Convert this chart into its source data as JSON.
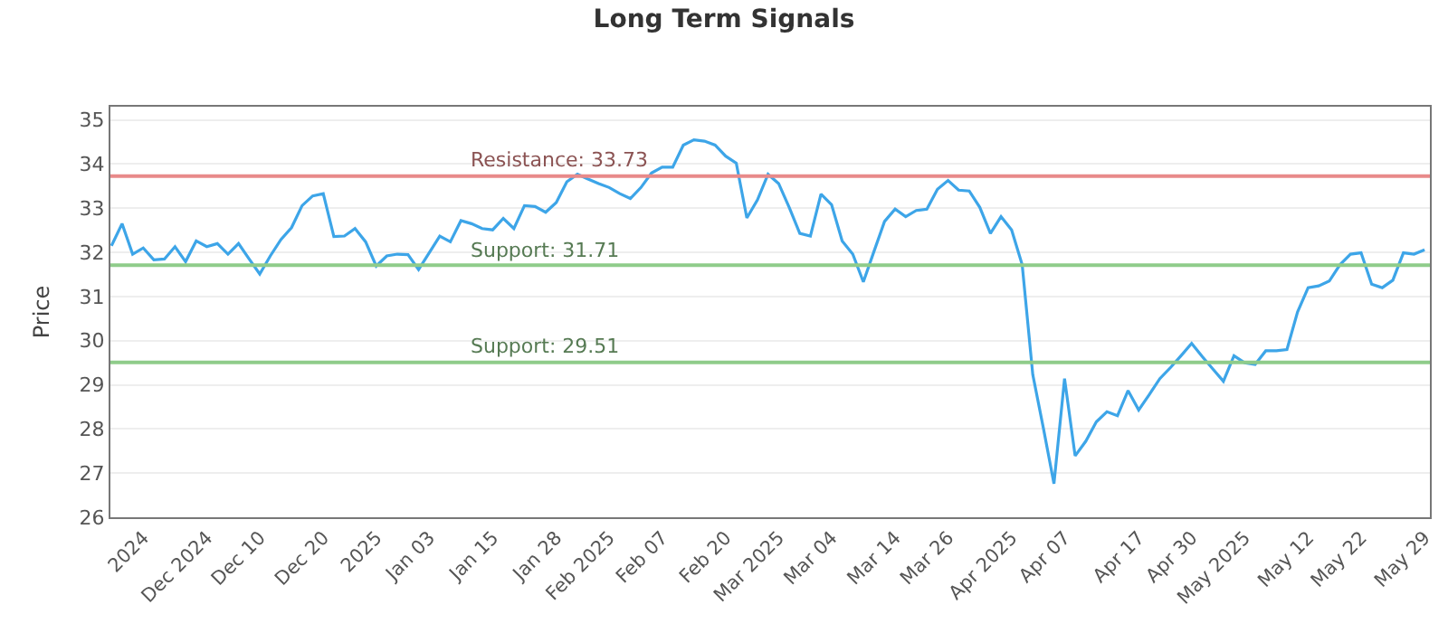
{
  "chart_data": {
    "type": "line",
    "title": "Long Term Signals",
    "ylabel": "Price",
    "categories": [
      null,
      null,
      null,
      "2024",
      null,
      null,
      null,
      null,
      null,
      "Dec 2024",
      null,
      null,
      null,
      null,
      "Dec 10",
      null,
      null,
      null,
      null,
      null,
      "Dec 20",
      null,
      null,
      null,
      null,
      "2025",
      null,
      null,
      null,
      null,
      "Jan 03",
      null,
      null,
      null,
      null,
      null,
      "Jan 15",
      null,
      null,
      null,
      null,
      null,
      "Jan 28",
      null,
      null,
      null,
      null,
      "Feb 2025",
      null,
      null,
      null,
      null,
      "Feb 07",
      null,
      null,
      null,
      null,
      null,
      "Feb 20",
      null,
      null,
      null,
      null,
      "Mar 2025",
      null,
      null,
      null,
      null,
      "Mar 04",
      null,
      null,
      null,
      null,
      null,
      "Mar 14",
      null,
      null,
      null,
      null,
      "Mar 26",
      null,
      null,
      null,
      null,
      null,
      "Apr 2025",
      null,
      null,
      null,
      null,
      "Apr 07",
      null,
      null,
      null,
      null,
      null,
      null,
      "Apr 17",
      null,
      null,
      null,
      null,
      "Apr 30",
      null,
      null,
      null,
      null,
      "May 2025",
      null,
      null,
      null,
      null,
      null,
      "May 12",
      null,
      null,
      null,
      null,
      "May 22",
      null,
      null,
      null,
      null,
      null,
      "May 29"
    ],
    "values": [
      32.15,
      32.65,
      31.96,
      32.1,
      31.83,
      31.85,
      32.13,
      31.79,
      32.26,
      32.13,
      32.2,
      31.96,
      32.2,
      31.85,
      31.51,
      31.92,
      32.29,
      32.56,
      33.06,
      33.28,
      33.33,
      32.36,
      32.37,
      32.54,
      32.24,
      31.69,
      31.92,
      31.96,
      31.95,
      31.61,
      31.99,
      32.37,
      32.24,
      32.72,
      32.65,
      32.54,
      32.51,
      32.77,
      32.54,
      33.06,
      33.04,
      32.91,
      33.13,
      33.6,
      33.77,
      33.66,
      33.56,
      33.47,
      33.33,
      33.22,
      33.47,
      33.8,
      33.93,
      33.93,
      34.43,
      34.55,
      34.52,
      34.43,
      34.18,
      34.02,
      32.78,
      33.19,
      33.77,
      33.56,
      33.02,
      32.43,
      32.37,
      33.32,
      33.08,
      32.26,
      31.96,
      31.33,
      32.02,
      32.7,
      32.98,
      32.81,
      32.95,
      32.98,
      33.43,
      33.63,
      33.41,
      33.39,
      33.02,
      32.43,
      32.81,
      32.51,
      31.72,
      29.23,
      28.02,
      26.76,
      29.14,
      27.39,
      27.72,
      28.16,
      28.39,
      28.3,
      28.87,
      28.43,
      28.78,
      29.14,
      29.39,
      29.66,
      29.94,
      29.64,
      29.36,
      29.08,
      29.66,
      29.5,
      29.46,
      29.77,
      29.77,
      29.8,
      30.65,
      31.2,
      31.24,
      31.35,
      31.72,
      31.96,
      31.99,
      31.28,
      31.2,
      31.37,
      31.99,
      31.96,
      32.06
    ],
    "color": "#3da5e8",
    "ylim": [
      26,
      35.3
    ],
    "yticks": [
      26,
      27,
      28,
      29,
      30,
      31,
      32,
      33,
      34,
      35
    ],
    "grid": "y",
    "ref_lines": [
      {
        "axis": "y",
        "value": 33.73,
        "label": "Resistance: 33.73",
        "color": "#e88a8a"
      },
      {
        "axis": "y",
        "value": 31.71,
        "label": "Support: 31.71",
        "color": "#8fcc8a"
      },
      {
        "axis": "y",
        "value": 29.51,
        "label": "Support: 29.51",
        "color": "#8fcc8a"
      }
    ]
  }
}
